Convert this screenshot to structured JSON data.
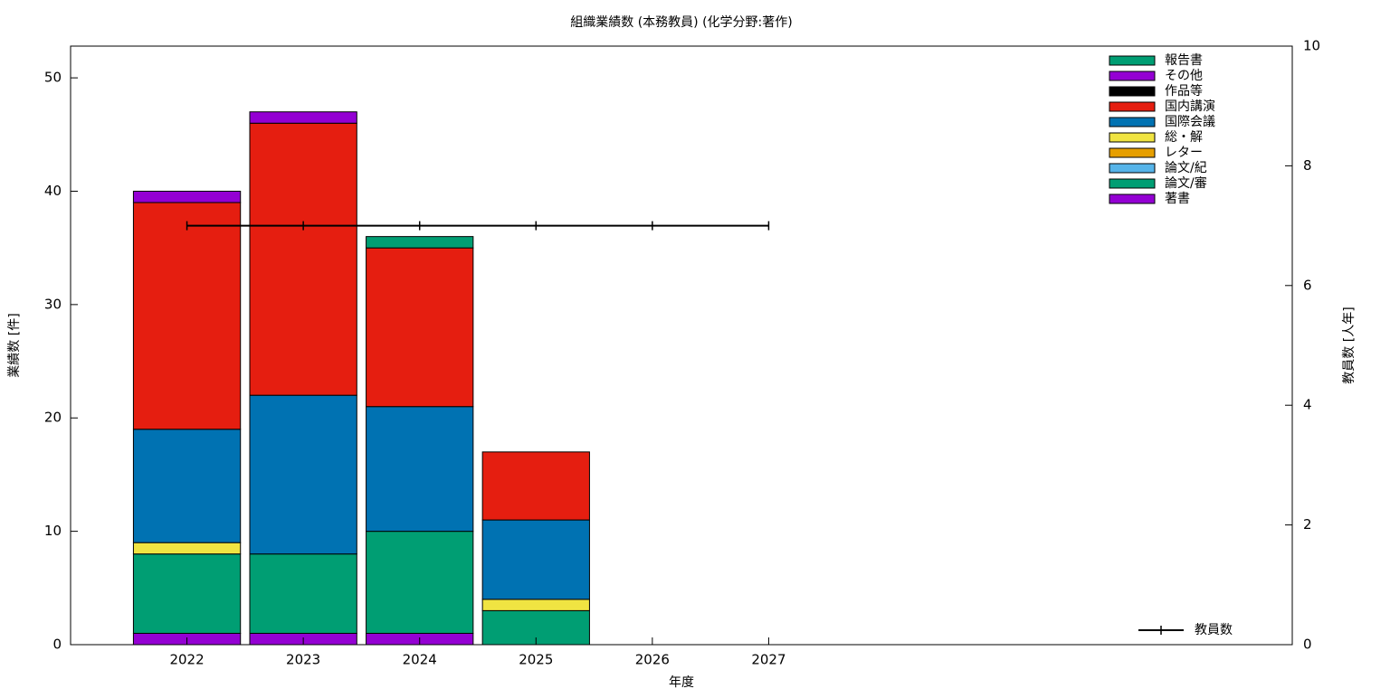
{
  "chart_data": {
    "type": "bar",
    "stacked": true,
    "title": "組織業績数 (本務教員) (化学分野:著作)",
    "xlabel": "年度",
    "ylabel": "業績数 [件]",
    "y2label": "教員数 [人年]",
    "x": [
      2022,
      2023,
      2024,
      2025,
      2026,
      2027
    ],
    "xlim": [
      2021,
      2031.5
    ],
    "xticks": [
      2022,
      2023,
      2024,
      2025,
      2026,
      2027
    ],
    "ylim": [
      0,
      52.8
    ],
    "yticks": [
      0,
      10,
      20,
      30,
      40,
      50
    ],
    "y2lim": [
      0,
      10
    ],
    "y2ticks": [
      0,
      2,
      4,
      6,
      8,
      10
    ],
    "grid": false,
    "legend": "upper right",
    "series": [
      {
        "name": "著書",
        "color": "#9400d3",
        "values": [
          1,
          1,
          1,
          0,
          0,
          0
        ]
      },
      {
        "name": "論文/審",
        "color": "#009e73",
        "values": [
          7,
          7,
          9,
          3,
          0,
          0
        ]
      },
      {
        "name": "論文/紀",
        "color": "#56b4e9",
        "values": [
          0,
          0,
          0,
          0,
          0,
          0
        ]
      },
      {
        "name": "レター",
        "color": "#e69f00",
        "values": [
          0,
          0,
          0,
          0,
          0,
          0
        ]
      },
      {
        "name": "総・解",
        "color": "#f0e442",
        "values": [
          1,
          0,
          0,
          1,
          0,
          0
        ]
      },
      {
        "name": "国際会議",
        "color": "#0072b2",
        "values": [
          10,
          14,
          11,
          7,
          0,
          0
        ]
      },
      {
        "name": "国内講演",
        "color": "#e51e10",
        "values": [
          20,
          24,
          14,
          6,
          0,
          0
        ]
      },
      {
        "name": "作品等",
        "color": "#000000",
        "values": [
          0,
          0,
          0,
          0,
          0,
          0
        ]
      },
      {
        "name": "その他",
        "color": "#9400d3",
        "values": [
          1,
          1,
          0,
          0,
          0,
          0
        ]
      },
      {
        "name": "報告書",
        "color": "#009e73",
        "values": [
          0,
          0,
          1,
          0,
          0,
          0
        ]
      },
      {
        "name": "教員数",
        "color": "#000000",
        "type": "line",
        "axis": "y2",
        "values": [
          7,
          7,
          7,
          7,
          7,
          7
        ]
      }
    ]
  }
}
